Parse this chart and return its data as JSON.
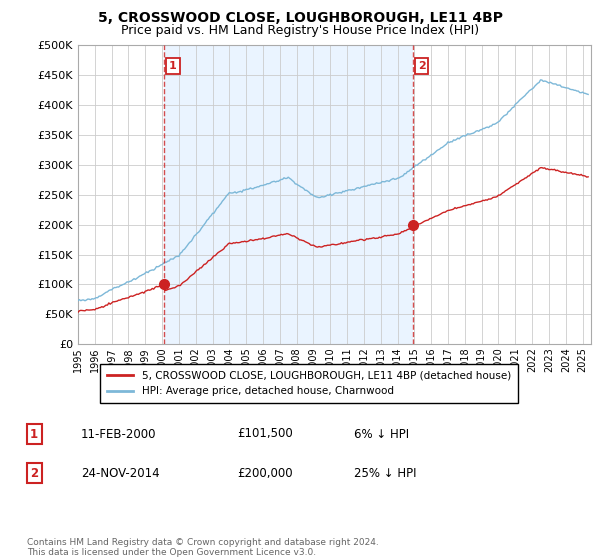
{
  "title": "5, CROSSWOOD CLOSE, LOUGHBOROUGH, LE11 4BP",
  "subtitle": "Price paid vs. HM Land Registry's House Price Index (HPI)",
  "ylim": [
    0,
    500000
  ],
  "yticks": [
    0,
    50000,
    100000,
    150000,
    200000,
    250000,
    300000,
    350000,
    400000,
    450000,
    500000
  ],
  "ytick_labels": [
    "£0",
    "£50K",
    "£100K",
    "£150K",
    "£200K",
    "£250K",
    "£300K",
    "£350K",
    "£400K",
    "£450K",
    "£500K"
  ],
  "xlim_start": 1995.0,
  "xlim_end": 2025.5,
  "sale_dates": [
    2000.117,
    2014.9
  ],
  "sale_prices": [
    101500,
    200000
  ],
  "sale_labels": [
    "1",
    "2"
  ],
  "vline_dates": [
    2000.117,
    2014.9
  ],
  "hpi_color": "#7db8d8",
  "sale_color": "#cc2222",
  "vline_color": "#cc2222",
  "shade_color": "#ddeeff",
  "background_color": "#ffffff",
  "grid_color": "#cccccc",
  "legend_label_sale": "5, CROSSWOOD CLOSE, LOUGHBOROUGH, LE11 4BP (detached house)",
  "legend_label_hpi": "HPI: Average price, detached house, Charnwood",
  "annotation1_label": "1",
  "annotation1_date": "11-FEB-2000",
  "annotation1_price": "£101,500",
  "annotation1_hpi": "6% ↓ HPI",
  "annotation2_label": "2",
  "annotation2_date": "24-NOV-2014",
  "annotation2_price": "£200,000",
  "annotation2_hpi": "25% ↓ HPI",
  "footer": "Contains HM Land Registry data © Crown copyright and database right 2024.\nThis data is licensed under the Open Government Licence v3.0.",
  "title_fontsize": 10,
  "subtitle_fontsize": 9
}
